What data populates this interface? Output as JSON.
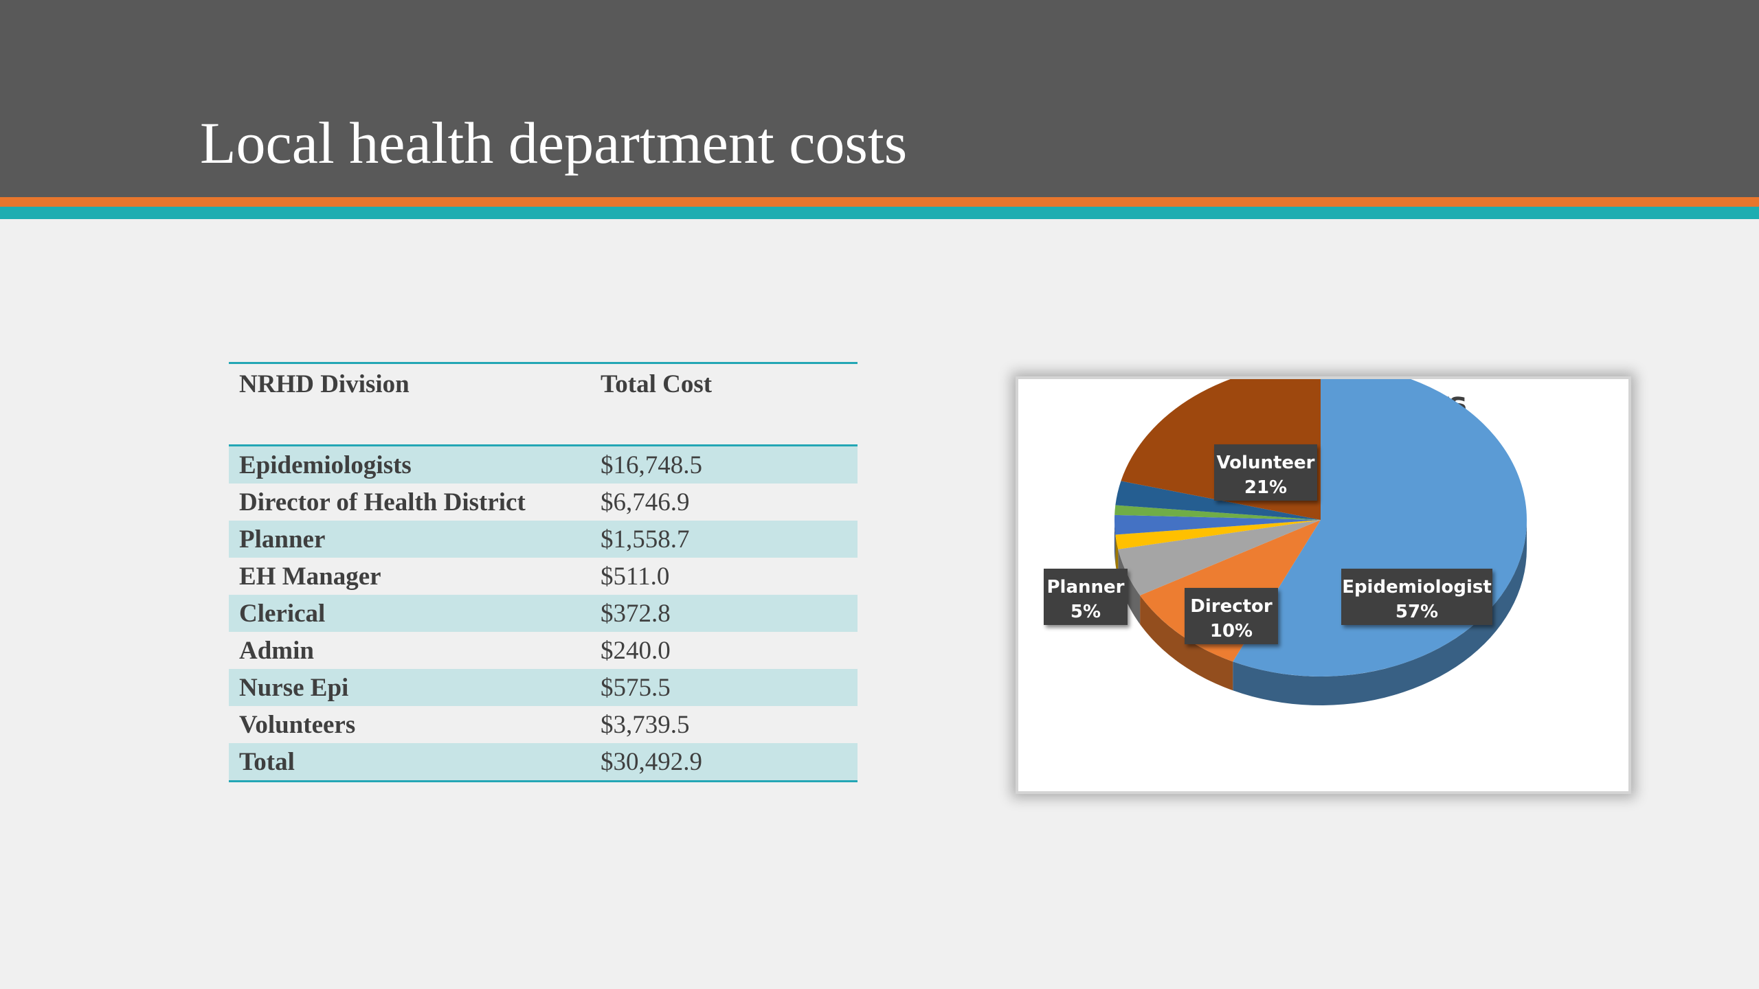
{
  "slide": {
    "title": "Local health department costs"
  },
  "table": {
    "headers": [
      "NRHD Division",
      "Total Cost"
    ],
    "rows": [
      {
        "division": "Epidemiologists",
        "cost": "$16,748.5"
      },
      {
        "division": "Director of Health District",
        "cost": "$6,746.9"
      },
      {
        "division": "Planner",
        "cost": "$1,558.7"
      },
      {
        "division": "EH Manager",
        "cost": "$511.0"
      },
      {
        "division": "Clerical",
        "cost": "$372.8"
      },
      {
        "division": "Admin",
        "cost": "$240.0"
      },
      {
        "division": "Nurse Epi",
        "cost": "$575.5"
      },
      {
        "division": "Volunteers",
        "cost": "$3,739.5"
      },
      {
        "division": "Total",
        "cost": "$30,492.9"
      }
    ]
  },
  "chart_data": {
    "type": "pie",
    "title": "Hours",
    "slices": [
      {
        "name": "Epidemiologist",
        "value": 57,
        "color": "#5b9bd5",
        "label": "Epidemiologist",
        "pct": "57%"
      },
      {
        "name": "Director",
        "value": 10,
        "color": "#ed7d31",
        "label": "Director",
        "pct": "10%"
      },
      {
        "name": "Planner",
        "value": 5,
        "color": "#a5a5a5",
        "label": "Planner",
        "pct": "5%"
      },
      {
        "name": "",
        "value": 1.5,
        "color": "#ffc000",
        "label": "",
        "pct": ""
      },
      {
        "name": "",
        "value": 2,
        "color": "#4472c4",
        "label": "",
        "pct": ""
      },
      {
        "name": "",
        "value": 1,
        "color": "#70ad47",
        "label": "",
        "pct": ""
      },
      {
        "name": "",
        "value": 2.5,
        "color": "#255e91",
        "label": "",
        "pct": ""
      },
      {
        "name": "Volunteer",
        "value": 21,
        "color": "#9e480e",
        "label": "Volunteer",
        "pct": "21%"
      }
    ]
  }
}
